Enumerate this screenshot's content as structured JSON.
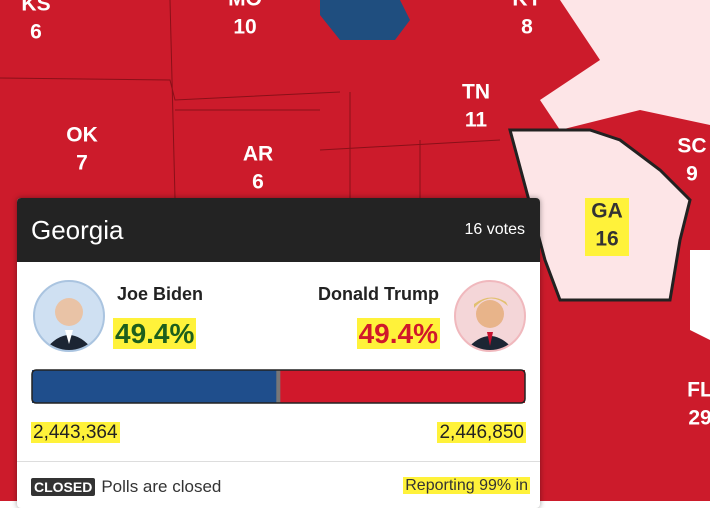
{
  "states": [
    {
      "abbr": "KS",
      "votes": 6
    },
    {
      "abbr": "MO",
      "votes": 10
    },
    {
      "abbr": "KY",
      "votes": 8
    },
    {
      "abbr": "OK",
      "votes": 7
    },
    {
      "abbr": "AR",
      "votes": 6
    },
    {
      "abbr": "TN",
      "votes": 11
    },
    {
      "abbr": "SC",
      "votes": 9
    },
    {
      "abbr": "GA",
      "votes": 16
    },
    {
      "abbr": "FL",
      "votes": 29
    }
  ],
  "popup": {
    "state": "Georgia",
    "electoral_votes": "16 votes",
    "candidates": [
      {
        "name": "Joe Biden",
        "percent": "49.4%",
        "votes": {
          "value": 2443364,
          "label": "2,443,364"
        },
        "color": "#1f4e8c"
      },
      {
        "name": "Donald Trump",
        "percent": "49.4%",
        "votes": {
          "value": 2446850,
          "label": "2,446,850"
        },
        "color": "#d0182b"
      }
    ],
    "status_badge": "CLOSED",
    "status": "Polls are closed",
    "reporting": "Reporting 99% in"
  }
}
